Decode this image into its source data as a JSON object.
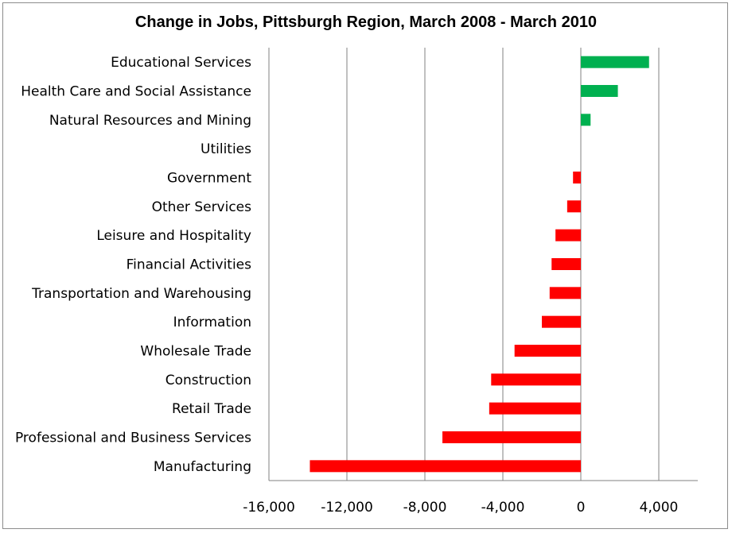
{
  "chart_data": {
    "type": "bar",
    "orientation": "horizontal",
    "title": "Change in Jobs, Pittsburgh Region, March 2008 - March 2010",
    "xlabel": "",
    "ylabel": "",
    "xlim": [
      -16000,
      6000
    ],
    "xticks": [
      -16000,
      -12000,
      -8000,
      -4000,
      0,
      4000
    ],
    "xtick_labels": [
      "-16,000",
      "-12,000",
      "-8,000",
      "-4,000",
      "0",
      "4,000"
    ],
    "grid": "vertical gridlines",
    "legend": "none",
    "positive_color": "#00b050",
    "negative_color": "#ff0000",
    "categories": [
      "Educational Services",
      "Health Care and Social Assistance",
      "Natural Resources and Mining",
      "Utilities",
      "Government",
      "Other Services",
      "Leisure and Hospitality",
      "Financial Activities",
      "Transportation and Warehousing",
      "Information",
      "Wholesale Trade",
      "Construction",
      "Retail Trade",
      "Professional and Business Services",
      "Manufacturing"
    ],
    "values": [
      3500,
      1900,
      500,
      0,
      -400,
      -700,
      -1300,
      -1500,
      -1600,
      -2000,
      -3400,
      -4600,
      -4700,
      -7100,
      -13900
    ]
  }
}
